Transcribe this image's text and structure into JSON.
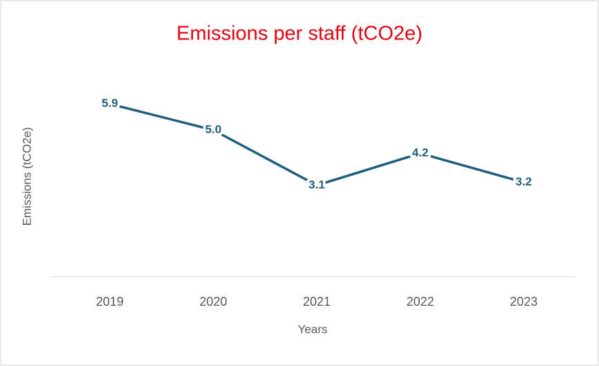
{
  "chart_data": {
    "type": "line",
    "title": "Emissions per staff (tCO2e)",
    "x_label": "Years",
    "y_label": "Emissions (tCO2e)",
    "categories": [
      "2019",
      "2020",
      "2021",
      "2022",
      "2023"
    ],
    "series": [
      {
        "name": "Emissions per staff",
        "color": "#1f5f7e",
        "values": [
          5.9,
          5.0,
          3.1,
          4.2,
          3.2
        ],
        "value_labels": [
          "5.9",
          "5.0",
          "3.1",
          "4.2",
          "3.2"
        ]
      }
    ],
    "ylim": [
      0,
      7
    ]
  }
}
